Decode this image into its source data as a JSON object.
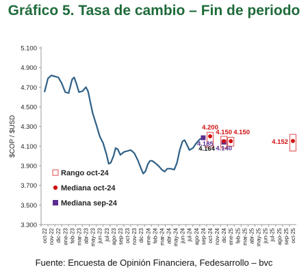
{
  "title": "Gráfico 5. Tasa de cambio – Fin de periodo",
  "source": "Fuente: Encuesta de Opinión Financiera, Fedesarrollo – bvc",
  "chart_data": {
    "type": "line",
    "ylabel": "$COP / $USD",
    "xlabel": "",
    "ylim": [
      3300,
      5100
    ],
    "yticks": [
      "3.300",
      "3.500",
      "3.700",
      "3.900",
      "4.100",
      "4.300",
      "4.500",
      "4.700",
      "4.900",
      "5.100"
    ],
    "ytick_values": [
      3300,
      3500,
      3700,
      3900,
      4100,
      4300,
      4500,
      4700,
      4900,
      5100
    ],
    "categories": [
      "oct-22",
      "nov-22",
      "dic-22",
      "ene-23",
      "feb-23",
      "mar-23",
      "abr-23",
      "may-23",
      "jun-23",
      "jul-23",
      "ago-23",
      "sep-23",
      "oct-23",
      "nov-23",
      "dic-23",
      "ene-24",
      "feb-24",
      "mar-24",
      "abr-24",
      "may-24",
      "jun-24",
      "jul-24",
      "ago-24",
      "sep-24",
      "oct-24",
      "nov-24",
      "dic-24",
      "ene-25",
      "feb-25",
      "mar-25",
      "abr-25",
      "may-25",
      "jun-25",
      "jul-25",
      "ago-25",
      "sep-25",
      "oct-25"
    ],
    "historical": [
      [
        0,
        4650
      ],
      [
        0.5,
        4790
      ],
      [
        1,
        4820
      ],
      [
        1.5,
        4810
      ],
      [
        2,
        4800
      ],
      [
        2.5,
        4740
      ],
      [
        3,
        4650
      ],
      [
        3.5,
        4640
      ],
      [
        4,
        4780
      ],
      [
        4.3,
        4800
      ],
      [
        4.6,
        4740
      ],
      [
        5,
        4650
      ],
      [
        5.5,
        4660
      ],
      [
        6,
        4700
      ],
      [
        6.3,
        4660
      ],
      [
        6.6,
        4560
      ],
      [
        7,
        4430
      ],
      [
        7.5,
        4320
      ],
      [
        8,
        4200
      ],
      [
        8.5,
        4130
      ],
      [
        9,
        4010
      ],
      [
        9.3,
        3920
      ],
      [
        9.6,
        3930
      ],
      [
        10,
        4000
      ],
      [
        10.3,
        4080
      ],
      [
        10.6,
        4070
      ],
      [
        11,
        4010
      ],
      [
        11.5,
        4040
      ],
      [
        12,
        4050
      ],
      [
        12.5,
        4060
      ],
      [
        13,
        4030
      ],
      [
        13.5,
        3960
      ],
      [
        14,
        3870
      ],
      [
        14.3,
        3820
      ],
      [
        14.6,
        3840
      ],
      [
        15,
        3920
      ],
      [
        15.3,
        3950
      ],
      [
        15.6,
        3950
      ],
      [
        16,
        3930
      ],
      [
        16.5,
        3900
      ],
      [
        17,
        3860
      ],
      [
        17.4,
        3840
      ],
      [
        17.8,
        3870
      ],
      [
        18.3,
        3870
      ],
      [
        18.8,
        3860
      ],
      [
        19.2,
        3930
      ],
      [
        19.6,
        4060
      ],
      [
        20,
        4150
      ],
      [
        20.3,
        4160
      ],
      [
        20.6,
        4120
      ],
      [
        21,
        4060
      ],
      [
        21.5,
        4080
      ],
      [
        22,
        4130
      ],
      [
        22.5,
        4170
      ],
      [
        23,
        4180
      ]
    ],
    "rango_oct_24": [
      {
        "x": 24,
        "low": 4090,
        "high": 4240
      },
      {
        "x": 26,
        "low": 4080,
        "high": 4200
      },
      {
        "x": 27,
        "low": 4100,
        "high": 4190
      },
      {
        "x": 36,
        "low": 4050,
        "high": 4220
      }
    ],
    "mediana_oct_24": [
      {
        "x": 24,
        "value": 4200,
        "label": "4.200"
      },
      {
        "x": 26,
        "value": 4150,
        "label": "4.150"
      },
      {
        "x": 27,
        "value": 4150,
        "label": "4.150"
      },
      {
        "x": 36,
        "value": 4152,
        "label": "4.152"
      }
    ],
    "mediana_sep_24": [
      {
        "x": 23,
        "value": 4185,
        "label": "4.185"
      },
      {
        "x": 26,
        "value": 4140,
        "label": "4.140"
      }
    ],
    "annotations": [
      {
        "x": 24,
        "value": 4164,
        "label": "4.164"
      }
    ],
    "legend": [
      {
        "name": "Rango oct-24",
        "marker": "hollow-square"
      },
      {
        "name": "Mediana oct-24",
        "marker": "circle"
      },
      {
        "name": "Mediana sep-24",
        "marker": "square"
      }
    ],
    "legend_position": "bottom-left",
    "colors": {
      "line": "#2e5f86",
      "rango": "#e04848",
      "mediana_oct": "#d01010",
      "mediana_sep": "#5b2d8e",
      "axis": "#999999"
    }
  }
}
